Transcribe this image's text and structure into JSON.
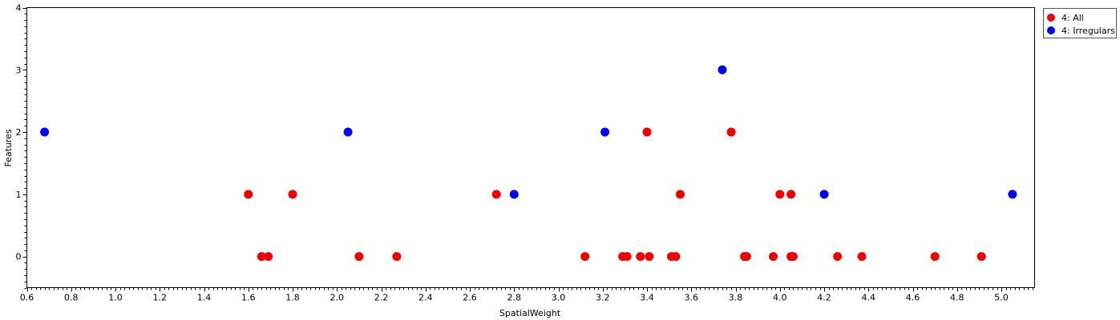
{
  "chart_data": {
    "type": "scatter",
    "xlabel": "SpatialWeight",
    "ylabel": "Features",
    "xlim": [
      0.6,
      5.15
    ],
    "ylim": [
      -0.5,
      4
    ],
    "x_ticks": [
      "0.6",
      "0.8",
      "1.0",
      "1.2",
      "1.4",
      "1.6",
      "1.8",
      "2.0",
      "2.2",
      "2.4",
      "2.6",
      "2.8",
      "3.0",
      "3.2",
      "3.4",
      "3.6",
      "3.8",
      "4.0",
      "4.2",
      "4.4",
      "4.6",
      "4.8",
      "5.0"
    ],
    "y_ticks": [
      "0",
      "1",
      "2",
      "3",
      "4"
    ],
    "legend_position": "top-right, outside plot",
    "series": [
      {
        "name": "4: All",
        "color": "#ee0000",
        "points": [
          [
            1.6,
            1
          ],
          [
            1.66,
            0
          ],
          [
            1.69,
            0
          ],
          [
            1.8,
            1
          ],
          [
            2.1,
            0
          ],
          [
            2.27,
            0
          ],
          [
            2.72,
            1
          ],
          [
            3.12,
            0
          ],
          [
            3.29,
            0
          ],
          [
            3.31,
            0
          ],
          [
            3.37,
            0
          ],
          [
            3.4,
            2
          ],
          [
            3.41,
            0
          ],
          [
            3.51,
            0
          ],
          [
            3.53,
            0
          ],
          [
            3.55,
            1
          ],
          [
            3.78,
            2
          ],
          [
            3.84,
            0
          ],
          [
            3.85,
            0
          ],
          [
            3.97,
            0
          ],
          [
            4.0,
            1
          ],
          [
            4.05,
            1
          ],
          [
            4.05,
            0
          ],
          [
            4.06,
            0
          ],
          [
            4.26,
            0
          ],
          [
            4.37,
            0
          ],
          [
            4.7,
            0
          ],
          [
            4.91,
            0
          ]
        ]
      },
      {
        "name": "4: Irregulars",
        "color": "#0000ee",
        "points": [
          [
            0.68,
            2
          ],
          [
            2.05,
            2
          ],
          [
            2.8,
            1
          ],
          [
            3.21,
            2
          ],
          [
            3.74,
            3
          ],
          [
            4.2,
            1
          ],
          [
            5.05,
            1
          ]
        ]
      }
    ]
  }
}
